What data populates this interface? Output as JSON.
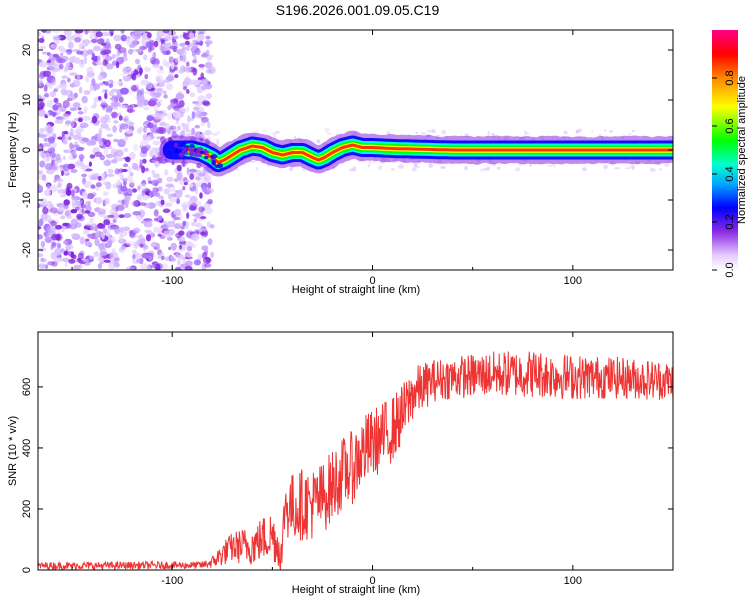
{
  "title": "S196.2026.001.09.05.C19",
  "colors": {
    "snr_line": "#ee3333",
    "ridge_core": "#ff3300",
    "scatter": "#8a2be2"
  },
  "chart_data": [
    {
      "type": "heatmap",
      "name": "spectrogram",
      "xlabel": "Height of straight line (km)",
      "ylabel": "Frequency (Hz)",
      "xlim": [
        -167,
        150
      ],
      "ylim": [
        -24,
        24
      ],
      "xticks": [
        -100,
        0,
        100
      ],
      "xtick_labels": [
        "-100",
        "0",
        "100"
      ],
      "yticks": [
        20,
        10,
        0,
        -10,
        -20
      ],
      "ytick_labels": [
        "20",
        "10",
        "0",
        "-10",
        "-20"
      ],
      "ridge": {
        "x": [
          -100,
          -90,
          -85,
          -80,
          -77,
          -74,
          -70,
          -66,
          -60,
          -55,
          -50,
          -45,
          -40,
          -35,
          -30,
          -27,
          -24,
          -20,
          -15,
          -10,
          -5,
          0,
          10,
          20,
          30,
          40,
          60,
          80,
          100,
          120,
          150
        ],
        "y_hz": [
          0,
          0,
          -0.5,
          -1.5,
          -2.5,
          -2,
          -1,
          0,
          0.8,
          0.5,
          -0.5,
          -1,
          -0.5,
          -0.5,
          -1.5,
          -2,
          -1.5,
          -0.5,
          0.5,
          1,
          0.5,
          0.5,
          0.3,
          0.2,
          0.1,
          0,
          0,
          0,
          0,
          0,
          0
        ]
      },
      "noise_region_x": [
        -167,
        -83
      ],
      "colorbar": {
        "label": "Normalized spectral amplitude",
        "ticks": [
          0.0,
          0.2,
          0.4,
          0.6,
          0.8
        ],
        "tick_labels": [
          "0.0",
          "0.2",
          "0.4",
          "0.6",
          "0.8"
        ],
        "range": [
          0,
          1
        ]
      }
    },
    {
      "type": "line",
      "name": "snr",
      "xlabel": "Height of straight line (km)",
      "ylabel": "SNR (10 * v/v)",
      "xlim": [
        -167,
        150
      ],
      "ylim": [
        0,
        780
      ],
      "xticks": [
        -100,
        0,
        100
      ],
      "xtick_labels": [
        "-100",
        "0",
        "100"
      ],
      "yticks": [
        0,
        200,
        400,
        600
      ],
      "ytick_labels": [
        "0",
        "200",
        "400",
        "600"
      ],
      "envelope": {
        "x": [
          -167,
          -85,
          -80,
          -75,
          -70,
          -65,
          -60,
          -55,
          -50,
          -45,
          -44,
          -40,
          -35,
          -30,
          -25,
          -20,
          -15,
          -10,
          -5,
          0,
          5,
          10,
          15,
          20,
          30,
          40,
          60,
          80,
          100,
          120,
          150
        ],
        "baseline": [
          10,
          12,
          20,
          40,
          60,
          60,
          60,
          80,
          90,
          30,
          180,
          170,
          180,
          180,
          200,
          240,
          280,
          300,
          350,
          380,
          400,
          430,
          480,
          550,
          600,
          610,
          620,
          620,
          610,
          610,
          600
        ],
        "amplitude": [
          25,
          25,
          40,
          80,
          100,
          120,
          130,
          150,
          170,
          120,
          220,
          230,
          240,
          240,
          240,
          240,
          240,
          240,
          240,
          230,
          230,
          220,
          200,
          180,
          140,
          140,
          150,
          160,
          150,
          140,
          130
        ]
      }
    }
  ]
}
